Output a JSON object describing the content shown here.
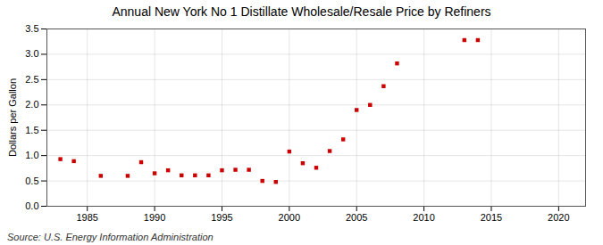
{
  "chart_data": {
    "type": "scatter",
    "title": "Annual New York No 1 Distillate Wholesale/Resale Price by Refiners",
    "ylabel": "Dollars per Gallon",
    "caption": "Source: U.S. Energy Information Administration",
    "x": [
      1983,
      1984,
      1986,
      1988,
      1989,
      1990,
      1991,
      1992,
      1993,
      1994,
      1995,
      1996,
      1997,
      1998,
      1999,
      2000,
      2001,
      2002,
      2003,
      2004,
      2005,
      2006,
      2007,
      2008,
      2013,
      2014
    ],
    "values": [
      0.93,
      0.89,
      0.6,
      0.6,
      0.87,
      0.65,
      0.71,
      0.61,
      0.61,
      0.61,
      0.71,
      0.72,
      0.72,
      0.5,
      0.48,
      1.08,
      0.85,
      0.76,
      1.09,
      1.32,
      1.9,
      2.0,
      2.37,
      2.82,
      3.28,
      3.28
    ],
    "color": "#cc0000",
    "marker": "square",
    "xlim": [
      1982,
      2022
    ],
    "xticks": [
      1985,
      1990,
      1995,
      2000,
      2005,
      2010,
      2015,
      2020
    ],
    "ylim": [
      0.0,
      3.5
    ],
    "yticks": [
      {
        "value": 0.0,
        "label": "0.0"
      },
      0.5,
      {
        "value": 1.0,
        "label": "1.0"
      },
      1.5,
      {
        "value": 2.0,
        "label": "2.0"
      },
      2.5,
      {
        "value": 3.0,
        "label": "3.0"
      },
      3.5
    ],
    "grid": true
  }
}
